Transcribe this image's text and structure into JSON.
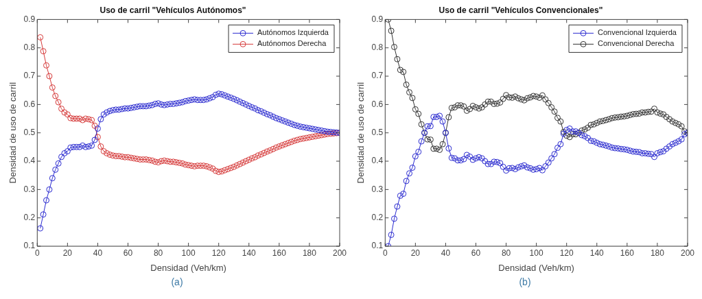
{
  "chart_data": [
    {
      "type": "line",
      "title": "Uso de carril \"Vehículos Autónomos\"",
      "xlabel": "Densidad (Veh/km)",
      "ylabel": "Densidad de uso de carril",
      "annotations": [
        "(a)"
      ],
      "x": [
        2,
        4,
        6,
        8,
        10,
        12,
        14,
        16,
        18,
        20,
        22,
        24,
        26,
        28,
        30,
        32,
        34,
        36,
        38,
        40,
        42,
        44,
        46,
        48,
        50,
        52,
        54,
        56,
        58,
        60,
        62,
        64,
        66,
        68,
        70,
        72,
        74,
        76,
        78,
        80,
        82,
        84,
        86,
        88,
        90,
        92,
        94,
        96,
        98,
        100,
        102,
        104,
        106,
        108,
        110,
        112,
        114,
        116,
        118,
        120,
        122,
        124,
        126,
        128,
        130,
        132,
        134,
        136,
        138,
        140,
        142,
        144,
        146,
        148,
        150,
        152,
        154,
        156,
        158,
        160,
        162,
        164,
        166,
        168,
        170,
        172,
        174,
        176,
        178,
        180,
        182,
        184,
        186,
        188,
        190,
        192,
        194,
        196,
        198,
        200
      ],
      "series": [
        {
          "name": "Autónomos Izquierda",
          "color": "#2b2bd0",
          "values": [
            0.163,
            0.212,
            0.262,
            0.3,
            0.34,
            0.37,
            0.392,
            0.415,
            0.428,
            0.435,
            0.448,
            0.45,
            0.45,
            0.45,
            0.455,
            0.45,
            0.452,
            0.455,
            0.475,
            0.515,
            0.548,
            0.565,
            0.572,
            0.577,
            0.58,
            0.582,
            0.582,
            0.584,
            0.586,
            0.586,
            0.588,
            0.59,
            0.592,
            0.594,
            0.594,
            0.594,
            0.596,
            0.598,
            0.602,
            0.604,
            0.6,
            0.598,
            0.6,
            0.602,
            0.602,
            0.604,
            0.606,
            0.608,
            0.612,
            0.614,
            0.616,
            0.618,
            0.616,
            0.616,
            0.616,
            0.618,
            0.622,
            0.626,
            0.634,
            0.638,
            0.636,
            0.632,
            0.628,
            0.624,
            0.62,
            0.615,
            0.61,
            0.605,
            0.6,
            0.595,
            0.59,
            0.586,
            0.58,
            0.576,
            0.571,
            0.566,
            0.562,
            0.557,
            0.552,
            0.548,
            0.544,
            0.54,
            0.536,
            0.532,
            0.528,
            0.525,
            0.522,
            0.52,
            0.518,
            0.516,
            0.514,
            0.512,
            0.51,
            0.508,
            0.506,
            0.504,
            0.503,
            0.502,
            0.501,
            0.5
          ]
        },
        {
          "name": "Autónomos Derecha",
          "color": "#d63a3a",
          "values": [
            0.837,
            0.788,
            0.738,
            0.7,
            0.66,
            0.63,
            0.608,
            0.585,
            0.572,
            0.565,
            0.552,
            0.55,
            0.55,
            0.55,
            0.545,
            0.55,
            0.548,
            0.545,
            0.525,
            0.485,
            0.452,
            0.435,
            0.428,
            0.423,
            0.42,
            0.418,
            0.418,
            0.416,
            0.414,
            0.414,
            0.412,
            0.41,
            0.408,
            0.406,
            0.406,
            0.406,
            0.404,
            0.402,
            0.398,
            0.396,
            0.4,
            0.402,
            0.4,
            0.398,
            0.398,
            0.396,
            0.394,
            0.392,
            0.388,
            0.386,
            0.384,
            0.382,
            0.384,
            0.384,
            0.384,
            0.382,
            0.378,
            0.374,
            0.366,
            0.362,
            0.364,
            0.368,
            0.372,
            0.376,
            0.38,
            0.385,
            0.39,
            0.395,
            0.4,
            0.405,
            0.41,
            0.414,
            0.42,
            0.424,
            0.429,
            0.434,
            0.438,
            0.443,
            0.448,
            0.452,
            0.456,
            0.46,
            0.464,
            0.468,
            0.472,
            0.475,
            0.478,
            0.48,
            0.482,
            0.484,
            0.486,
            0.488,
            0.49,
            0.492,
            0.494,
            0.496,
            0.497,
            0.498,
            0.499,
            0.5
          ]
        }
      ],
      "xlim": [
        0,
        200
      ],
      "xticks": [
        0,
        20,
        40,
        60,
        80,
        100,
        120,
        140,
        160,
        180,
        200
      ],
      "ylim": [
        0.1,
        0.9
      ],
      "yticks": [
        0.1,
        0.2,
        0.3,
        0.4,
        0.5,
        0.6,
        0.7,
        0.8,
        0.9
      ],
      "grid": false,
      "legend": "top right",
      "marker": "circle",
      "line_style": "solid"
    },
    {
      "type": "line",
      "title": "Uso de carril \"Vehículos Convencionales\"",
      "xlabel": "Densidad (Veh/km)",
      "ylabel": "Densidad de uso de carril",
      "annotations": [
        "(b)"
      ],
      "x": [
        2,
        4,
        6,
        8,
        10,
        12,
        14,
        16,
        18,
        20,
        22,
        24,
        26,
        28,
        30,
        32,
        34,
        36,
        38,
        40,
        42,
        44,
        46,
        48,
        50,
        52,
        54,
        56,
        58,
        60,
        62,
        64,
        66,
        68,
        70,
        72,
        74,
        76,
        78,
        80,
        82,
        84,
        86,
        88,
        90,
        92,
        94,
        96,
        98,
        100,
        102,
        104,
        106,
        108,
        110,
        112,
        114,
        116,
        118,
        120,
        122,
        124,
        126,
        128,
        130,
        132,
        134,
        136,
        138,
        140,
        142,
        144,
        146,
        148,
        150,
        152,
        154,
        156,
        158,
        160,
        162,
        164,
        166,
        168,
        170,
        172,
        174,
        176,
        178,
        180,
        182,
        184,
        186,
        188,
        190,
        192,
        194,
        196,
        198,
        200
      ],
      "series": [
        {
          "name": "Convencional Izquierda",
          "color": "#2b2bd0",
          "values": [
            0.1,
            0.14,
            0.197,
            0.24,
            0.278,
            0.285,
            0.33,
            0.357,
            0.377,
            0.417,
            0.433,
            0.47,
            0.5,
            0.523,
            0.524,
            0.556,
            0.556,
            0.56,
            0.54,
            0.5,
            0.445,
            0.412,
            0.41,
            0.403,
            0.403,
            0.407,
            0.422,
            0.416,
            0.405,
            0.41,
            0.414,
            0.41,
            0.4,
            0.39,
            0.39,
            0.398,
            0.397,
            0.393,
            0.38,
            0.367,
            0.375,
            0.376,
            0.372,
            0.378,
            0.382,
            0.385,
            0.378,
            0.375,
            0.37,
            0.372,
            0.376,
            0.368,
            0.382,
            0.395,
            0.41,
            0.425,
            0.447,
            0.46,
            0.497,
            0.51,
            0.515,
            0.505,
            0.505,
            0.5,
            0.492,
            0.488,
            0.482,
            0.472,
            0.47,
            0.465,
            0.46,
            0.458,
            0.455,
            0.452,
            0.448,
            0.446,
            0.445,
            0.443,
            0.442,
            0.44,
            0.437,
            0.434,
            0.433,
            0.432,
            0.428,
            0.428,
            0.426,
            0.425,
            0.415,
            0.428,
            0.432,
            0.435,
            0.444,
            0.452,
            0.46,
            0.465,
            0.47,
            0.477,
            0.495,
            0.5
          ]
        },
        {
          "name": "Convencional Derecha",
          "color": "#333333",
          "values": [
            0.9,
            0.86,
            0.803,
            0.76,
            0.722,
            0.715,
            0.67,
            0.643,
            0.623,
            0.583,
            0.567,
            0.53,
            0.5,
            0.477,
            0.476,
            0.444,
            0.444,
            0.44,
            0.46,
            0.5,
            0.555,
            0.588,
            0.59,
            0.597,
            0.597,
            0.593,
            0.578,
            0.584,
            0.595,
            0.59,
            0.586,
            0.59,
            0.6,
            0.61,
            0.61,
            0.602,
            0.603,
            0.607,
            0.62,
            0.633,
            0.625,
            0.624,
            0.628,
            0.622,
            0.618,
            0.615,
            0.622,
            0.625,
            0.63,
            0.628,
            0.624,
            0.632,
            0.618,
            0.605,
            0.59,
            0.575,
            0.553,
            0.54,
            0.503,
            0.49,
            0.485,
            0.495,
            0.495,
            0.5,
            0.508,
            0.512,
            0.518,
            0.528,
            0.53,
            0.535,
            0.54,
            0.542,
            0.545,
            0.548,
            0.552,
            0.554,
            0.555,
            0.557,
            0.558,
            0.56,
            0.563,
            0.566,
            0.567,
            0.568,
            0.572,
            0.572,
            0.574,
            0.575,
            0.585,
            0.572,
            0.568,
            0.565,
            0.556,
            0.548,
            0.54,
            0.535,
            0.53,
            0.523,
            0.505,
            0.5
          ]
        }
      ],
      "xlim": [
        0,
        200
      ],
      "xticks": [
        0,
        20,
        40,
        60,
        80,
        100,
        120,
        140,
        160,
        180,
        200
      ],
      "ylim": [
        0.1,
        0.9
      ],
      "yticks": [
        0.1,
        0.2,
        0.3,
        0.4,
        0.5,
        0.6,
        0.7,
        0.8,
        0.9
      ],
      "grid": false,
      "legend": "top right",
      "marker": "circle",
      "line_style": "solid"
    }
  ]
}
